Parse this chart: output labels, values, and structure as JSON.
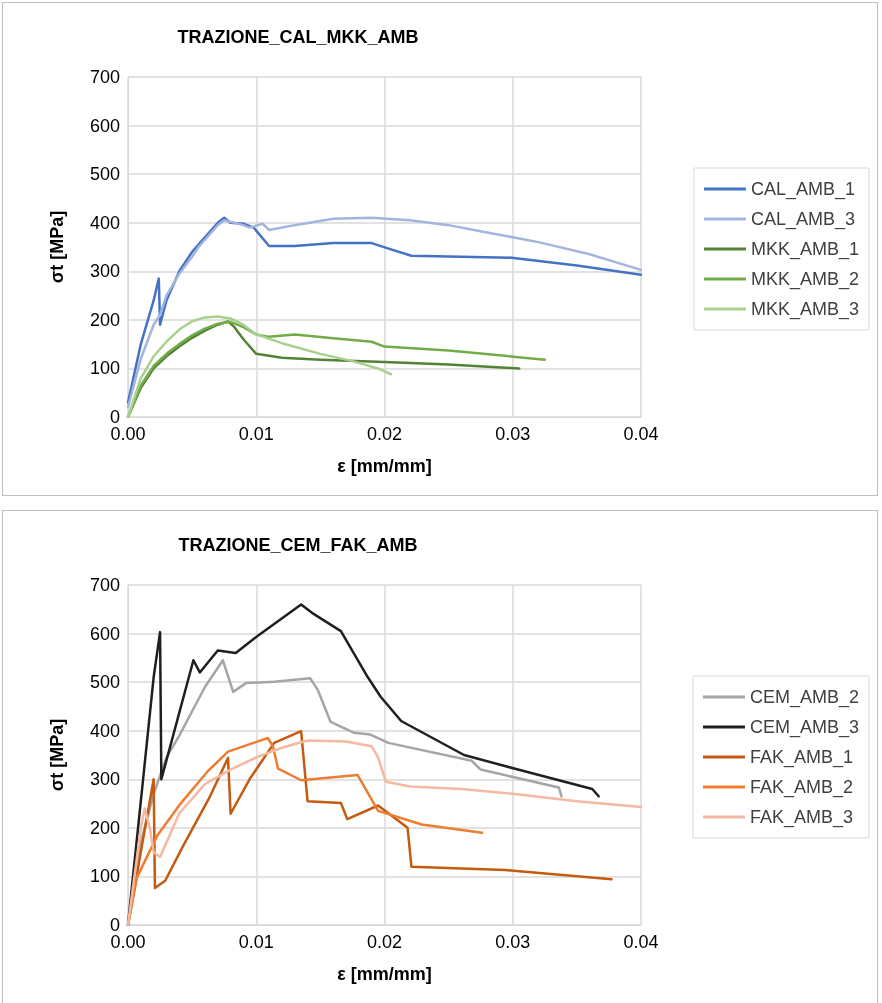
{
  "chart_data": [
    {
      "type": "line",
      "title": "TRAZIONE_CAL_MKK_AMB",
      "xlabel": "ε [mm/mm]",
      "ylabel": "σt [MPa]",
      "xlim": [
        0,
        0.04
      ],
      "xticks": [
        {
          "value": 0,
          "label": "0.00"
        },
        0.01,
        0.02,
        0.03,
        0.04
      ],
      "ylim": [
        0,
        700
      ],
      "yticks": [
        0,
        100,
        200,
        300,
        400,
        500,
        600,
        700
      ],
      "grid": true,
      "legend": "right",
      "marker": "none",
      "line_style": "solid",
      "series": [
        {
          "name": "CAL_AMB_1",
          "color": "#4472c4",
          "x": [
            0,
            0.001,
            0.002,
            0.0024,
            0.0025,
            0.003,
            0.004,
            0.005,
            0.006,
            0.007,
            0.0075,
            0.008,
            0.009,
            0.0098,
            0.011,
            0.013,
            0.016,
            0.019,
            0.0205,
            0.0221,
            0.0299,
            0.035,
            0.04
          ],
          "values": [
            30,
            150,
            240,
            285,
            190,
            240,
            300,
            340,
            370,
            400,
            410,
            400,
            398,
            390,
            352,
            352,
            358,
            358,
            345,
            332,
            328,
            312,
            293
          ]
        },
        {
          "name": "CAL_AMB_3",
          "color": "#a3b4de",
          "x": [
            0,
            0.001,
            0.002,
            0.0025,
            0.003,
            0.004,
            0.005,
            0.0055,
            0.006,
            0.007,
            0.0075,
            0.009,
            0.0095,
            0.0105,
            0.011,
            0.013,
            0.016,
            0.019,
            0.022,
            0.025,
            0.028,
            0.032,
            0.036,
            0.04
          ],
          "values": [
            20,
            120,
            190,
            210,
            250,
            295,
            330,
            350,
            365,
            395,
            405,
            395,
            390,
            398,
            385,
            395,
            408,
            410,
            405,
            395,
            380,
            360,
            335,
            303
          ]
        },
        {
          "name": "MKK_AMB_1",
          "color": "#548235",
          "x": [
            0,
            0.001,
            0.002,
            0.003,
            0.004,
            0.005,
            0.006,
            0.007,
            0.0078,
            0.0083,
            0.009,
            0.01,
            0.012,
            0.015,
            0.02,
            0.025,
            0.0305
          ],
          "values": [
            0,
            60,
            100,
            125,
            145,
            163,
            178,
            190,
            197,
            185,
            160,
            130,
            122,
            118,
            113,
            108,
            100
          ]
        },
        {
          "name": "MKK_AMB_2",
          "color": "#70ad47",
          "x": [
            0,
            0.001,
            0.002,
            0.003,
            0.004,
            0.005,
            0.006,
            0.007,
            0.008,
            0.009,
            0.01,
            0.011,
            0.013,
            0.016,
            0.019,
            0.02,
            0.025,
            0.0325
          ],
          "values": [
            0,
            65,
            105,
            130,
            150,
            168,
            182,
            192,
            196,
            185,
            170,
            165,
            170,
            162,
            155,
            145,
            137,
            118
          ]
        },
        {
          "name": "MKK_AMB_3",
          "color": "#a9d18e",
          "x": [
            0,
            0.001,
            0.002,
            0.003,
            0.004,
            0.005,
            0.006,
            0.007,
            0.008,
            0.009,
            0.01,
            0.012,
            0.015,
            0.0175,
            0.0195,
            0.0205
          ],
          "values": [
            0,
            80,
            125,
            155,
            180,
            197,
            205,
            207,
            203,
            190,
            170,
            152,
            130,
            115,
            100,
            88
          ]
        }
      ]
    },
    {
      "type": "line",
      "title": "TRAZIONE_CEM_FAK_AMB",
      "xlabel": "ε [mm/mm]",
      "ylabel": "σt [MPa]",
      "xlim": [
        0,
        0.04
      ],
      "xticks": [
        {
          "value": 0,
          "label": "0.00"
        },
        0.01,
        0.02,
        0.03,
        0.04
      ],
      "ylim": [
        0,
        700
      ],
      "yticks": [
        0,
        100,
        200,
        300,
        400,
        500,
        600,
        700
      ],
      "grid": true,
      "legend": "right",
      "marker": "none",
      "line_style": "solid",
      "series": [
        {
          "name": "CEM_AMB_2",
          "color": "#a5a5a5",
          "x": [
            0,
            0.001,
            0.002,
            0.003,
            0.004,
            0.005,
            0.006,
            0.0074,
            0.0082,
            0.0092,
            0.0114,
            0.0142,
            0.0148,
            0.0158,
            0.0176,
            0.0189,
            0.0203,
            0.0268,
            0.0275,
            0.0336,
            0.0338
          ],
          "values": [
            0,
            170,
            270,
            345,
            390,
            440,
            490,
            545,
            480,
            498,
            501,
            508,
            484,
            418,
            396,
            392,
            375,
            338,
            320,
            283,
            265
          ]
        },
        {
          "name": "CEM_AMB_3",
          "color": "#1f1f1f",
          "x": [
            0,
            0.002,
            0.0025,
            0.0026,
            0.0051,
            0.0056,
            0.007,
            0.0084,
            0.0101,
            0.0135,
            0.0145,
            0.0166,
            0.0187,
            0.0197,
            0.0213,
            0.0262,
            0.0307,
            0.0362,
            0.0367
          ],
          "values": [
            0,
            510,
            603,
            300,
            545,
            520,
            565,
            560,
            595,
            660,
            640,
            605,
            510,
            470,
            420,
            350,
            318,
            280,
            265
          ]
        },
        {
          "name": "FAK_AMB_1",
          "color": "#c55a11",
          "x": [
            0,
            0.001,
            0.002,
            0.0021,
            0.0029,
            0.0043,
            0.0064,
            0.0078,
            0.008,
            0.0095,
            0.0114,
            0.0135,
            0.014,
            0.0166,
            0.0171,
            0.0195,
            0.0218,
            0.0221,
            0.0294,
            0.0377
          ],
          "values": [
            0,
            150,
            300,
            76,
            91,
            163,
            265,
            344,
            229,
            301,
            375,
            399,
            255,
            251,
            218,
            246,
            200,
            120,
            113,
            94
          ]
        },
        {
          "name": "FAK_AMB_2",
          "color": "#ed7d31",
          "x": [
            0,
            0.0007,
            0.0023,
            0.0041,
            0.0062,
            0.0078,
            0.0109,
            0.0113,
            0.0117,
            0.0135,
            0.0179,
            0.0195,
            0.0229,
            0.0276
          ],
          "values": [
            0,
            98,
            185,
            250,
            316,
            357,
            385,
            368,
            322,
            298,
            309,
            235,
            207,
            190
          ]
        },
        {
          "name": "FAK_AMB_3",
          "color": "#f4b9a0",
          "x": [
            0,
            0.001,
            0.0013,
            0.0017,
            0.002,
            0.0025,
            0.003,
            0.004,
            0.006,
            0.008,
            0.01,
            0.012,
            0.014,
            0.017,
            0.019,
            0.0195,
            0.0201,
            0.022,
            0.026,
            0.03,
            0.035,
            0.04
          ],
          "values": [
            0,
            200,
            240,
            200,
            150,
            140,
            170,
            230,
            290,
            320,
            345,
            365,
            380,
            378,
            368,
            345,
            295,
            285,
            280,
            270,
            255,
            243
          ]
        }
      ]
    }
  ]
}
